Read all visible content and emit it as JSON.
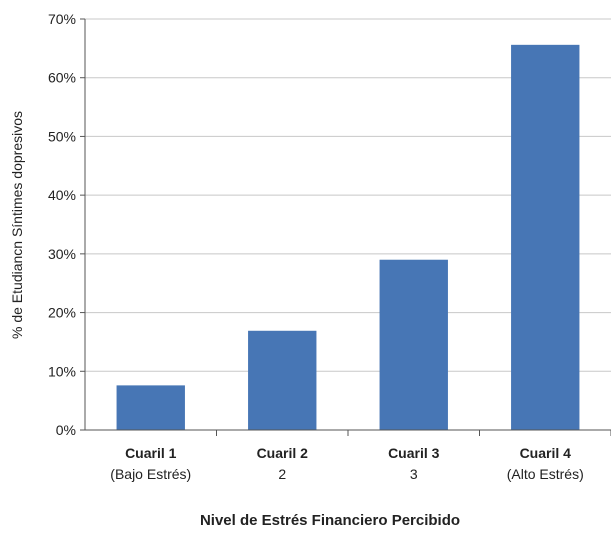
{
  "chart_data": {
    "type": "bar",
    "title": "",
    "xlabel": "Nivel de Estrés Financiero Percibido",
    "ylabel": "% de Etudiancn Síntimes dopresivos",
    "categories": [
      {
        "label": "Cuaril 1",
        "sublabel": "(Bajo Estrés)"
      },
      {
        "label": "Cuaril 2",
        "sublabel": "2"
      },
      {
        "label": "Cuaril 3",
        "sublabel": "3"
      },
      {
        "label": "Cuaril 4",
        "sublabel": "(Alto Estrés)"
      }
    ],
    "values": [
      7.6,
      16.9,
      29.0,
      65.6
    ],
    "ylim": [
      0,
      70
    ],
    "yticks": [
      0,
      10,
      20,
      30,
      40,
      50,
      60,
      70
    ],
    "ytick_labels": [
      "0%",
      "10%",
      "20%",
      "30%",
      "40%",
      "50%",
      "60%",
      "70%"
    ],
    "grid": true,
    "bar_color": "#4776b5"
  }
}
